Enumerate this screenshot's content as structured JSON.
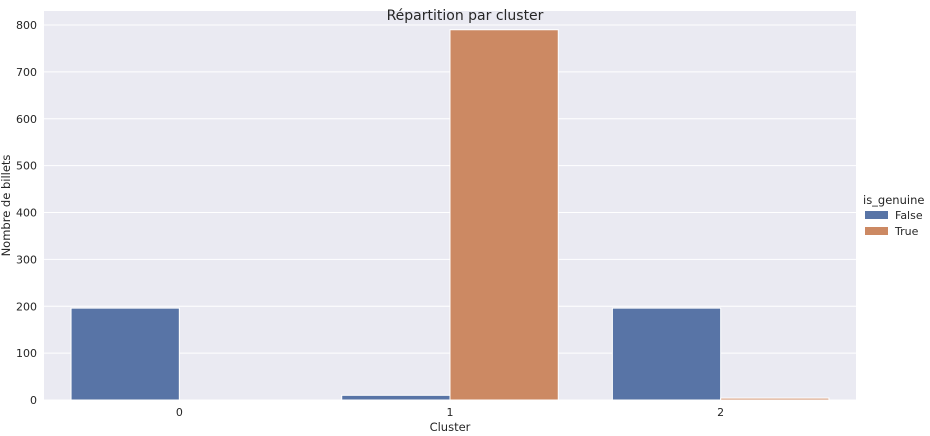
{
  "chart_data": {
    "type": "bar",
    "title": "Répartition par cluster",
    "xlabel": "Cluster",
    "ylabel": "Nombre de billets",
    "categories": [
      "0",
      "1",
      "2"
    ],
    "series": [
      {
        "name": "False",
        "color": "#5874a6",
        "values": [
          196,
          10,
          196
        ]
      },
      {
        "name": "True",
        "color": "#cc8963",
        "values": [
          0,
          790,
          4
        ]
      }
    ],
    "ylim": [
      0,
      830
    ],
    "yticks": [
      0,
      100,
      200,
      300,
      400,
      500,
      600,
      700,
      800
    ],
    "grid": true,
    "background_color": "#eaeaf2",
    "legend": {
      "title": "is_genuine",
      "placement": "right"
    }
  }
}
